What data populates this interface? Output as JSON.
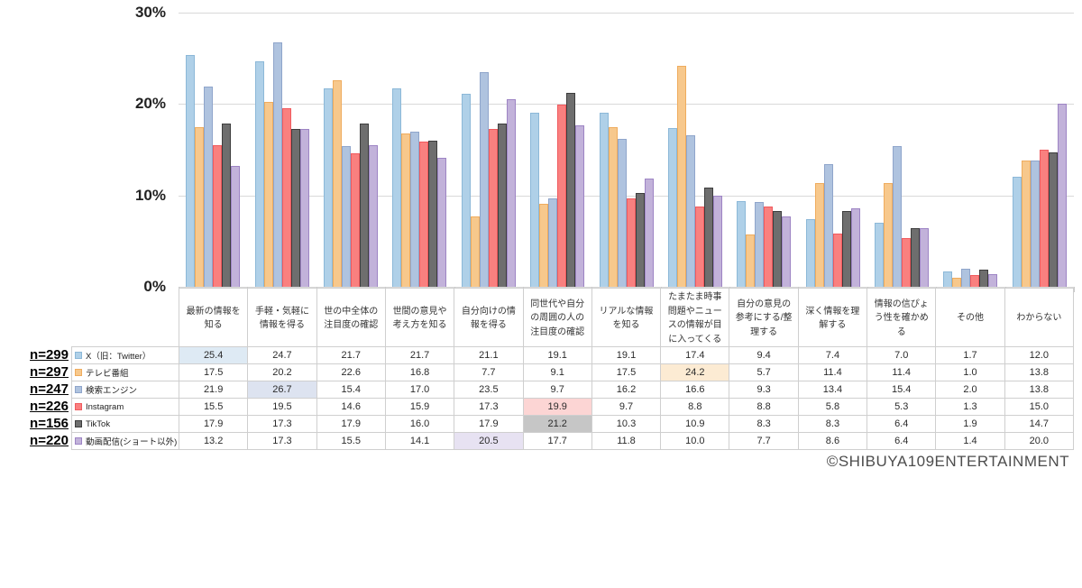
{
  "chart_data": {
    "type": "bar",
    "title": "",
    "xlabel": "",
    "ylabel": "",
    "ylim": [
      0,
      30
    ],
    "grid": true,
    "legend_position": "table-left",
    "yticks": [
      {
        "label": "30%",
        "value": 30
      },
      {
        "label": "20%",
        "value": 20
      },
      {
        "label": "10%",
        "value": 10
      },
      {
        "label": "0%",
        "value": 0
      }
    ],
    "categories": [
      "最新の情報を知る",
      "手軽・気軽に情報を得る",
      "世の中全体の注目度の確認",
      "世間の意見や考え方を知る",
      "自分向けの情報を得る",
      "同世代や自分の周囲の人の注目度の確認",
      "リアルな情報を知る",
      "たまたま時事問題やニュースの情報が目に入ってくる",
      "自分の意見の参考にする/整理する",
      "深く情報を理解する",
      "情報の信ぴょう性を確かめる",
      "その他",
      "わからない"
    ],
    "series": [
      {
        "name": "X（旧：Twitter）",
        "n": "n=299",
        "color": "#AFD0E8",
        "border": "#8CB8D8",
        "highlight_col": 0,
        "highlight_color": "#DEEAF4",
        "values": [
          25.4,
          24.7,
          21.7,
          21.7,
          21.1,
          19.1,
          19.1,
          17.4,
          9.4,
          7.4,
          7.0,
          1.7,
          12.0
        ]
      },
      {
        "name": "テレビ番組",
        "n": "n=297",
        "color": "#F7C88C",
        "border": "#EFAC5E",
        "highlight_col": 7,
        "highlight_color": "#FCEBD3",
        "values": [
          17.5,
          20.2,
          22.6,
          16.8,
          7.7,
          9.1,
          17.5,
          24.2,
          5.7,
          11.4,
          11.4,
          1.0,
          13.8
        ]
      },
      {
        "name": "検索エンジン",
        "n": "n=247",
        "color": "#AFC3DF",
        "border": "#8FA5CB",
        "highlight_col": 1,
        "highlight_color": "#DDE3F0",
        "values": [
          21.9,
          26.7,
          15.4,
          17.0,
          23.5,
          9.7,
          16.2,
          16.6,
          9.3,
          13.4,
          15.4,
          2.0,
          13.8
        ]
      },
      {
        "name": "Instagram",
        "n": "n=226",
        "color": "#F9807F",
        "border": "#F05A5E",
        "highlight_col": 5,
        "highlight_color": "#FCD5D4",
        "values": [
          15.5,
          19.5,
          14.6,
          15.9,
          17.3,
          19.9,
          9.7,
          8.8,
          8.8,
          5.8,
          5.3,
          1.3,
          15.0
        ]
      },
      {
        "name": "TikTok",
        "n": "n=156",
        "color": "#6E6E6E",
        "border": "#3D3D3D",
        "highlight_col": 5,
        "highlight_color": "#C6C6C6",
        "values": [
          17.9,
          17.3,
          17.9,
          16.0,
          17.9,
          21.2,
          10.3,
          10.9,
          8.3,
          8.3,
          6.4,
          1.9,
          14.7
        ]
      },
      {
        "name": "動画配信(ショート以外)",
        "n": "n=220",
        "color": "#C2B2DA",
        "border": "#9D84C4",
        "highlight_col": 4,
        "highlight_color": "#E7E2F2",
        "values": [
          13.2,
          17.3,
          15.5,
          14.1,
          20.5,
          17.7,
          11.8,
          10.0,
          7.7,
          8.6,
          6.4,
          1.4,
          20.0
        ]
      }
    ]
  },
  "copyright": "©SHIBUYA109ENTERTAINMENT"
}
